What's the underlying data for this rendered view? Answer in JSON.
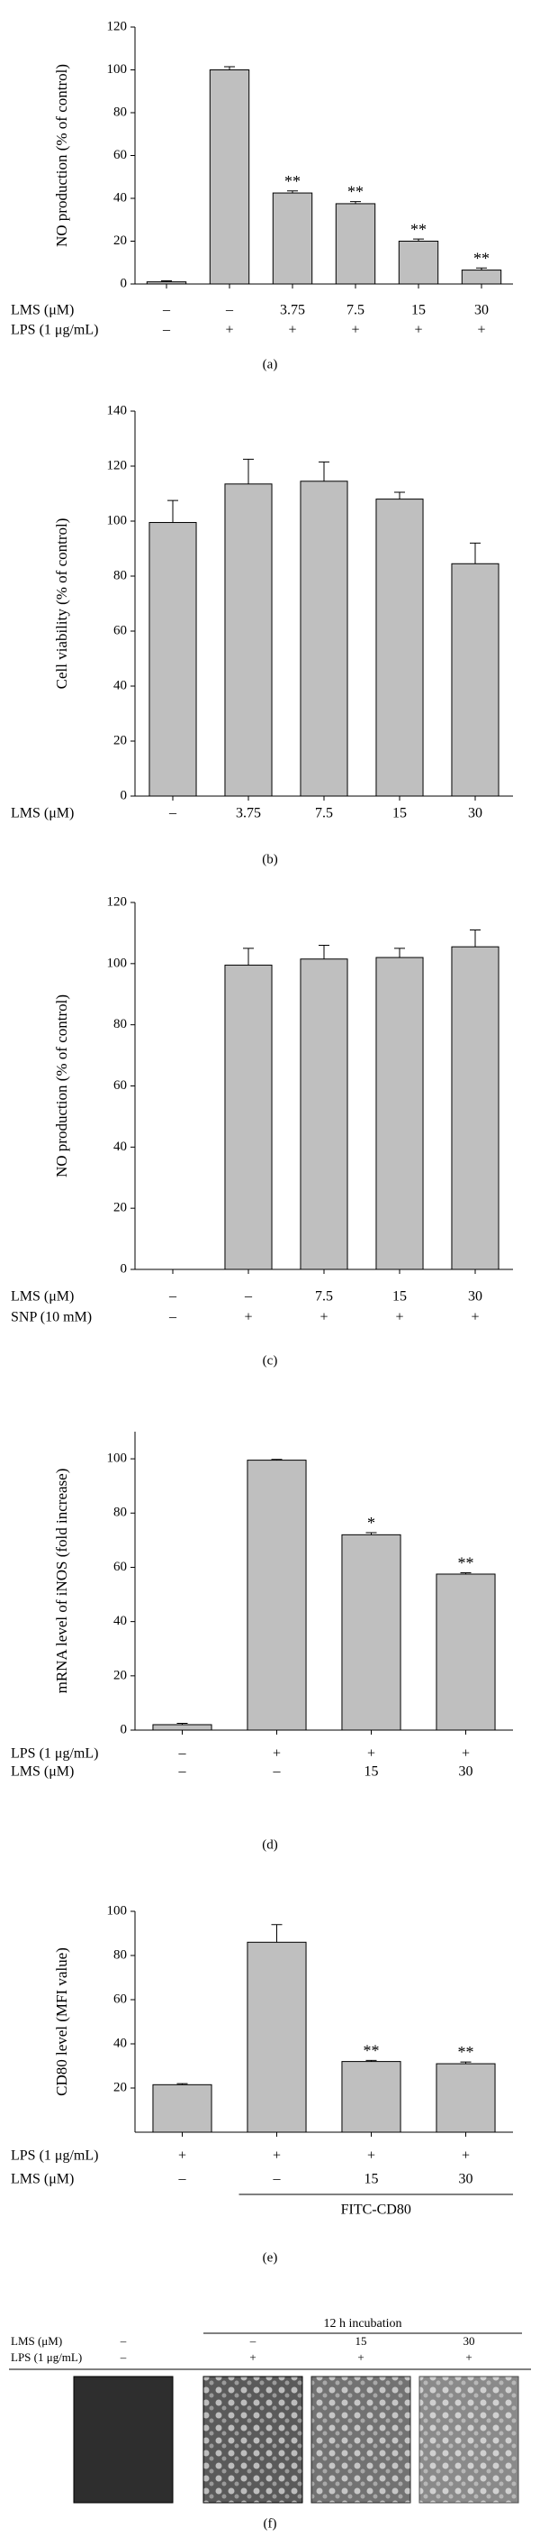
{
  "chart_data": [
    {
      "type": "bar",
      "label": "(a)",
      "y_label": "NO production (% of control)",
      "ylim": [
        0,
        120
      ],
      "yticks": [
        0,
        20,
        40,
        60,
        80,
        100,
        120
      ],
      "values": [
        1,
        100,
        42.5,
        37.5,
        20,
        6.5
      ],
      "errors": [
        0.5,
        1.5,
        1,
        1,
        1,
        1
      ],
      "annotations": [
        null,
        null,
        "**",
        "**",
        "**",
        "**"
      ],
      "color": "#bfbfbf",
      "rows": [
        {
          "label": "LMS (μM)",
          "cells": [
            "–",
            "–",
            "3.75",
            "7.5",
            "15",
            "30"
          ]
        },
        {
          "label": "LPS (1 μg/mL)",
          "cells": [
            "–",
            "+",
            "+",
            "+",
            "+",
            "+"
          ]
        }
      ]
    },
    {
      "type": "bar",
      "label": "(b)",
      "y_label": "Cell viability (% of control)",
      "ylim": [
        0,
        140
      ],
      "yticks": [
        0,
        20,
        40,
        60,
        80,
        100,
        120,
        140
      ],
      "values": [
        99.5,
        113.5,
        114.5,
        108,
        84.5
      ],
      "errors": [
        8,
        9,
        7,
        2.5,
        7.5
      ],
      "annotations": [
        null,
        null,
        null,
        null,
        null
      ],
      "color": "#bfbfbf",
      "rows": [
        {
          "label": "LMS (μM)",
          "cells": [
            "–",
            "3.75",
            "7.5",
            "15",
            "30"
          ]
        }
      ]
    },
    {
      "type": "bar",
      "label": "(c)",
      "y_label": "NO production (% of control)",
      "ylim": [
        0,
        120
      ],
      "yticks": [
        0,
        20,
        40,
        60,
        80,
        100,
        120
      ],
      "values": [
        0,
        99.5,
        101.5,
        102,
        105.5
      ],
      "errors": [
        0,
        5.5,
        4.5,
        3,
        5.5
      ],
      "annotations": [
        null,
        null,
        null,
        null,
        null
      ],
      "color": "#bfbfbf",
      "rows": [
        {
          "label": "LMS (μM)",
          "cells": [
            "–",
            "–",
            "7.5",
            "15",
            "30"
          ]
        },
        {
          "label": "SNP (10 mM)",
          "cells": [
            "–",
            "+",
            "+",
            "+",
            "+"
          ]
        }
      ]
    },
    {
      "type": "bar",
      "label": "(d)",
      "y_label": "mRNA level of iNOS (fold increase)",
      "ylim": [
        0,
        110
      ],
      "yticks": [
        0,
        20,
        40,
        60,
        80,
        100
      ],
      "values": [
        2,
        99.5,
        72,
        57.5
      ],
      "errors": [
        0.5,
        0.3,
        0.8,
        0.5
      ],
      "annotations": [
        null,
        null,
        "*",
        "**"
      ],
      "color": "#bfbfbf",
      "rows": [
        {
          "label": "LPS (1 μg/mL)",
          "cells": [
            "–",
            "+",
            "+",
            "+"
          ]
        },
        {
          "label": "LMS (μM)",
          "cells": [
            "–",
            "–",
            "15",
            "30"
          ]
        }
      ]
    },
    {
      "type": "bar",
      "label": "(e)",
      "y_label": "CD80 level (MFI value)",
      "ylim": [
        0,
        100
      ],
      "yticks": [
        20,
        40,
        60,
        80,
        100
      ],
      "values": [
        21.5,
        86,
        32,
        31
      ],
      "errors": [
        0.5,
        8,
        0.5,
        0.8
      ],
      "annotations": [
        null,
        null,
        "**",
        "**"
      ],
      "color": "#bfbfbf",
      "bracket": "FITC-CD80",
      "rows": [
        {
          "label": "LPS (1 μg/mL)",
          "cells": [
            "+",
            "+",
            "+",
            "+"
          ]
        },
        {
          "label": "LMS (μM)",
          "cells": [
            "–",
            "–",
            "15",
            "30"
          ]
        }
      ]
    }
  ],
  "figure_f": {
    "label": "(f)",
    "header": "12 h incubation",
    "rows": [
      {
        "label": "LMS (μM)",
        "cells": [
          "–",
          "–",
          "15",
          "30"
        ]
      },
      {
        "label": "LPS (1 μg/mL)",
        "cells": [
          "–",
          "+",
          "+",
          "+"
        ]
      }
    ]
  }
}
